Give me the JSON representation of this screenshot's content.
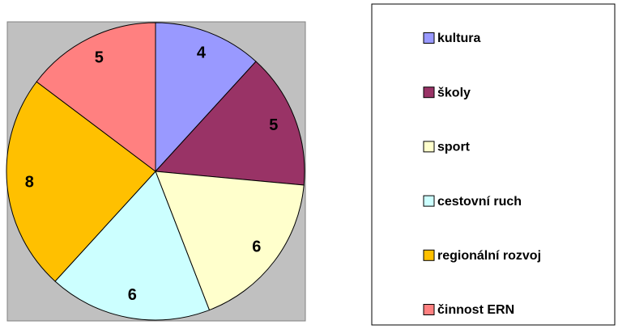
{
  "chart_data": {
    "type": "pie",
    "categories": [
      "kultura",
      "školy",
      "sport",
      "cestovní ruch",
      "regionální rozvoj",
      "činnost ERN"
    ],
    "values": [
      4,
      5,
      6,
      6,
      8,
      5
    ],
    "colors": [
      "#9999ff",
      "#993366",
      "#ffffcc",
      "#ccffff",
      "#ffc000",
      "#ff8080"
    ],
    "legend": "right"
  }
}
